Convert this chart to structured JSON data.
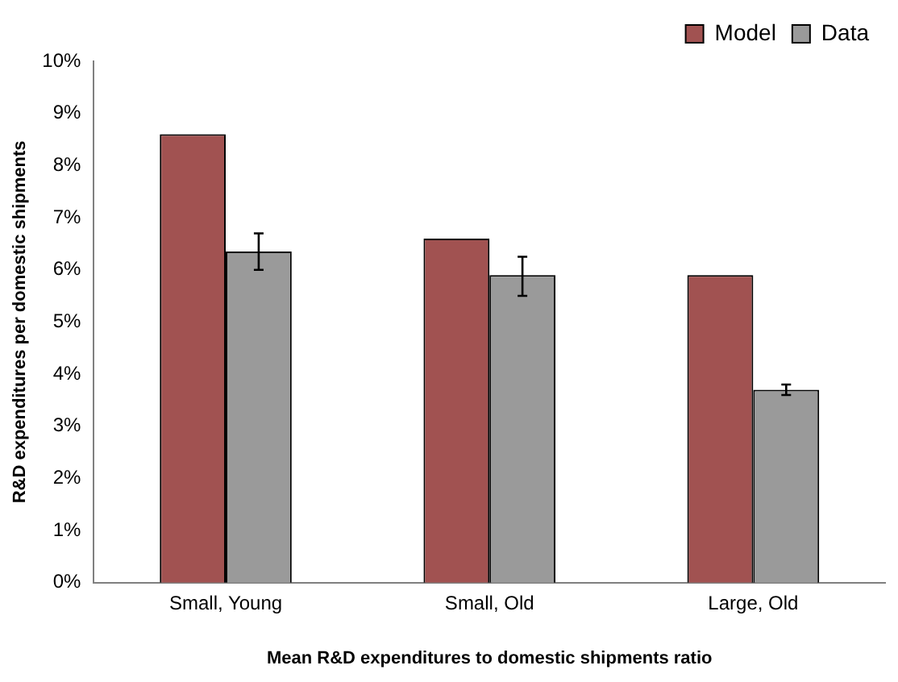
{
  "chart_data": {
    "type": "bar",
    "xlabel": "Mean R&D expenditures to domestic shipments ratio",
    "ylabel": "R&D expenditures per domestic shipments",
    "categories": [
      "Small, Young",
      "Small, Old",
      "Large, Old"
    ],
    "series": [
      {
        "name": "Model",
        "color": "#a15251",
        "values": [
          8.6,
          6.6,
          5.9
        ]
      },
      {
        "name": "Data",
        "color": "#9a9a9a",
        "values": [
          6.35,
          5.9,
          3.7
        ],
        "errors": [
          [
            6.0,
            6.7
          ],
          [
            5.5,
            6.25
          ],
          [
            3.6,
            3.8
          ]
        ]
      }
    ],
    "ylim": [
      0,
      10
    ],
    "yticks": [
      {
        "value": 0,
        "label": "0%"
      },
      {
        "value": 1,
        "label": "1%"
      },
      {
        "value": 2,
        "label": "2%"
      },
      {
        "value": 3,
        "label": "3%"
      },
      {
        "value": 4,
        "label": "4%"
      },
      {
        "value": 5,
        "label": "5%"
      },
      {
        "value": 6,
        "label": "6%"
      },
      {
        "value": 7,
        "label": "7%"
      },
      {
        "value": 8,
        "label": "8%"
      },
      {
        "value": 9,
        "label": "9%"
      },
      {
        "value": 10,
        "label": "10%"
      }
    ],
    "grid": false,
    "legend": "top right"
  }
}
